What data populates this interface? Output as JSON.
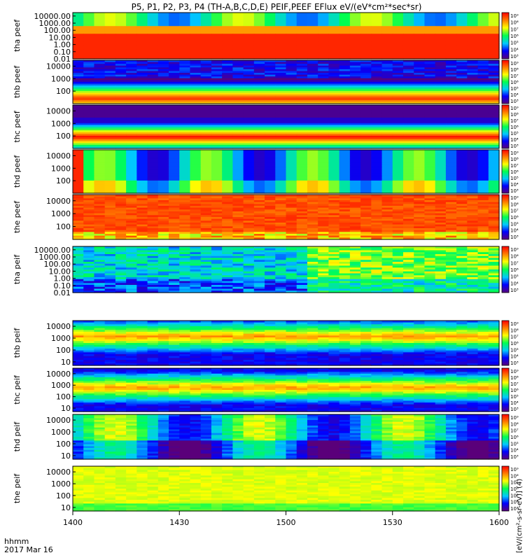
{
  "title": "P5, P1, P2, P3, P4 (TH-A,B,C,D,E) PEIF,PEEF EFlux eV/(eV*cm²*sec*sr)",
  "time_axis": {
    "label": "hhmm",
    "date": "2017 Mar 16",
    "ticks": [
      "1400",
      "1430",
      "1500",
      "1530",
      "1600"
    ]
  },
  "colorbar_label": "[eV/(cm²-s-sr-eV)] (4)",
  "chart_data": {
    "type": "heatmap",
    "x_range_hhmm": [
      "1400",
      "1600"
    ],
    "colormap": [
      "#5a007a",
      "#0000ff",
      "#00c8ff",
      "#00ff50",
      "#ffff00",
      "#ff8000",
      "#ff0000"
    ],
    "panels": [
      {
        "label": "tha peef",
        "y_ticks": [
          "10000.00",
          "1000.00",
          "100.00",
          "10.00",
          "1.00",
          "0.10",
          "0.01"
        ],
        "ylim": [
          0.01,
          30000
        ],
        "colorbar_ticks": [
          "10⁹",
          "10⁸",
          "10⁷",
          "10⁶",
          "10⁵",
          "10⁴",
          "10³"
        ]
      },
      {
        "label": "thb peef",
        "y_ticks": [
          "10000",
          "1000",
          "100"
        ],
        "ylim": [
          10,
          30000
        ],
        "colorbar_ticks": [
          "10⁹",
          "10⁸",
          "10⁷",
          "10⁶",
          "10⁵",
          "10⁴",
          "10³"
        ]
      },
      {
        "label": "thc peef",
        "y_ticks": [
          "10000",
          "1000",
          "100"
        ],
        "ylim": [
          10,
          30000
        ],
        "colorbar_ticks": [
          "10⁹",
          "10⁸",
          "10⁷",
          "10⁶",
          "10⁵",
          "10⁴",
          "10³"
        ]
      },
      {
        "label": "thd peef",
        "y_ticks": [
          "10000",
          "1000",
          "100"
        ],
        "ylim": [
          10,
          30000
        ],
        "colorbar_ticks": [
          "10⁹",
          "10⁸",
          "10⁷",
          "10⁶",
          "10⁵",
          "10⁴",
          "10³"
        ]
      },
      {
        "label": "the peef",
        "y_ticks": [
          "10000",
          "1000",
          "100"
        ],
        "ylim": [
          10,
          30000
        ],
        "colorbar_ticks": [
          "10⁹",
          "10⁸",
          "10⁷",
          "10⁶",
          "10⁵",
          "10⁴",
          "10³"
        ]
      },
      {
        "label": "tha peif",
        "y_ticks": [
          "10000.00",
          "1000.00",
          "100.00",
          "10.00",
          "1.00",
          "0.10",
          "0.01"
        ],
        "ylim": [
          0.01,
          30000
        ],
        "colorbar_ticks": [
          "10⁹",
          "10⁸",
          "10⁷",
          "10⁶",
          "10⁵",
          "10⁴",
          "10³"
        ]
      },
      {
        "label": "thb peif",
        "y_ticks": [
          "10000",
          "1000",
          "100",
          "10"
        ],
        "ylim": [
          5,
          30000
        ],
        "colorbar_ticks": [
          "10⁹",
          "10⁸",
          "10⁷",
          "10⁶",
          "10⁵",
          "10⁴",
          "10³"
        ]
      },
      {
        "label": "thc peif",
        "y_ticks": [
          "10000",
          "1000",
          "100",
          "10"
        ],
        "ylim": [
          5,
          30000
        ],
        "colorbar_ticks": [
          "10⁹",
          "10⁸",
          "10⁷",
          "10⁶",
          "10⁵",
          "10⁴",
          "10³"
        ]
      },
      {
        "label": "thd peif",
        "y_ticks": [
          "10000",
          "1000",
          "100",
          "10"
        ],
        "ylim": [
          5,
          30000
        ],
        "colorbar_ticks": [
          "10⁹",
          "10⁸",
          "10⁷",
          "10⁶",
          "10⁵",
          "10⁴",
          "10³"
        ]
      },
      {
        "label": "the peif",
        "y_ticks": [
          "10000",
          "1000",
          "100",
          "10"
        ],
        "ylim": [
          5,
          30000
        ],
        "colorbar_ticks": [
          "10⁹",
          "10⁸",
          "10⁷",
          "10⁶",
          "10⁵",
          "10⁴",
          "10³"
        ]
      }
    ]
  }
}
